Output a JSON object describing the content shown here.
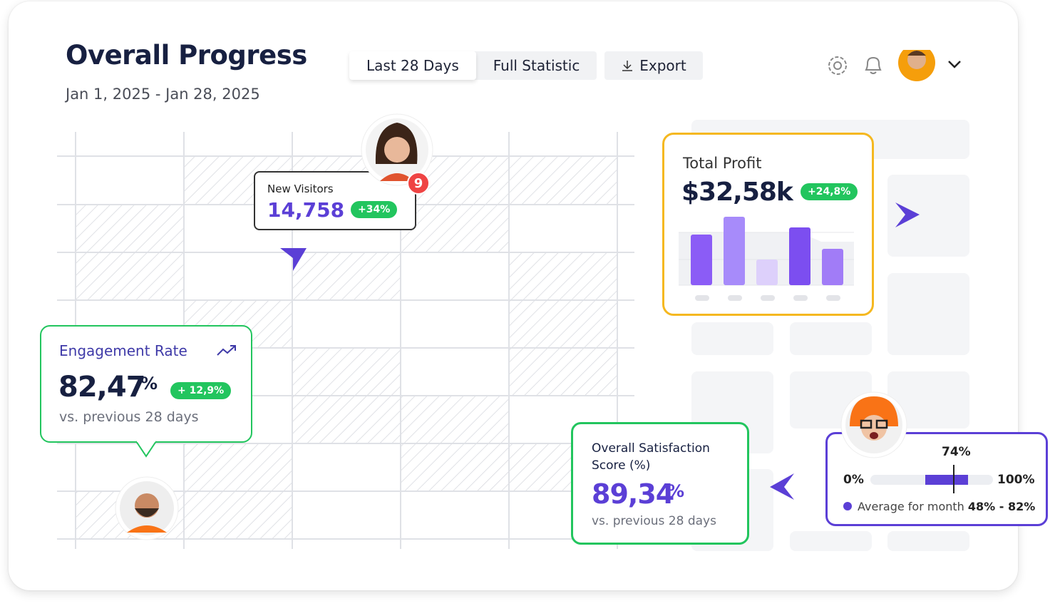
{
  "header": {
    "title": "Overall Progress",
    "date_range": "Jan 1, 2025 - Jan 28, 2025"
  },
  "toolbar": {
    "tabs": [
      "Last 28 Days",
      "Full Statistic"
    ],
    "export": "Export"
  },
  "notification_badge": "9",
  "new_visitors": {
    "label": "New Visitors",
    "value": "14,758",
    "change": "+34%"
  },
  "total_profit": {
    "label": "Total Profit",
    "value": "$32,58k",
    "change": "+24,8%"
  },
  "engagement_rate": {
    "label": "Engagement Rate",
    "value": "82,47",
    "unit": "%",
    "change": "+ 12,9%",
    "comparison": "vs. previous 28 days"
  },
  "satisfaction": {
    "label": "Overall Satisfaction Score (%)",
    "value": "89,34",
    "unit": "%",
    "comparison": "vs. previous 28 days"
  },
  "gauge": {
    "current": "74%",
    "min": "0%",
    "max": "100%",
    "legend_prefix": "Average for month",
    "legend_range": "48% - 82%"
  }
}
